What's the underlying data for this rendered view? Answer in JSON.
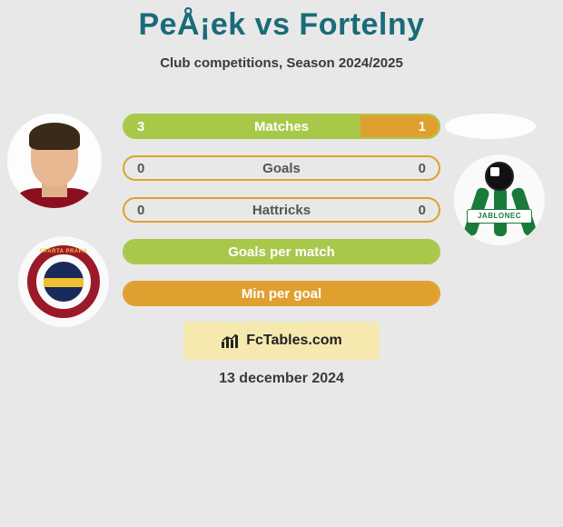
{
  "title": "PeÅ¡ek vs Fortelny",
  "subtitle": "Club competitions, Season 2024/2025",
  "date": "13 december 2024",
  "watermark": "FcTables.com",
  "colors": {
    "accent_teal": "#1a6b7a",
    "bar_green": "#a8c84a",
    "bar_orange": "#e0a030",
    "row_border_green": "#a8c84a",
    "row_border_orange": "#e0a030"
  },
  "left_player": {
    "name": "PeÅ¡ek",
    "club": "Sparta Praha",
    "club_banner": "SPARTA PRAHA"
  },
  "right_player": {
    "name": "Fortelny",
    "club": "Jablonec",
    "club_banner": "JABLONEC"
  },
  "stats": [
    {
      "label": "Matches",
      "left_value": "3",
      "right_value": "1",
      "left_pct": 75,
      "right_pct": 25,
      "left_color": "#a8c84a",
      "right_color": "#e0a030",
      "border_color": "#a8c84a",
      "label_on_fill": true
    },
    {
      "label": "Goals",
      "left_value": "0",
      "right_value": "0",
      "left_pct": 0,
      "right_pct": 0,
      "left_color": "#a8c84a",
      "right_color": "#e0a030",
      "border_color": "#e0a030",
      "label_on_fill": false
    },
    {
      "label": "Hattricks",
      "left_value": "0",
      "right_value": "0",
      "left_pct": 0,
      "right_pct": 0,
      "left_color": "#a8c84a",
      "right_color": "#e0a030",
      "border_color": "#e0a030",
      "label_on_fill": false
    },
    {
      "label": "Goals per match",
      "left_value": "",
      "right_value": "",
      "left_pct": 100,
      "right_pct": 0,
      "left_color": "#a8c84a",
      "right_color": "#e0a030",
      "border_color": "#a8c84a",
      "label_on_fill": true
    },
    {
      "label": "Min per goal",
      "left_value": "",
      "right_value": "",
      "left_pct": 0,
      "right_pct": 100,
      "left_color": "#a8c84a",
      "right_color": "#e0a030",
      "border_color": "#e0a030",
      "label_on_fill": true
    }
  ]
}
